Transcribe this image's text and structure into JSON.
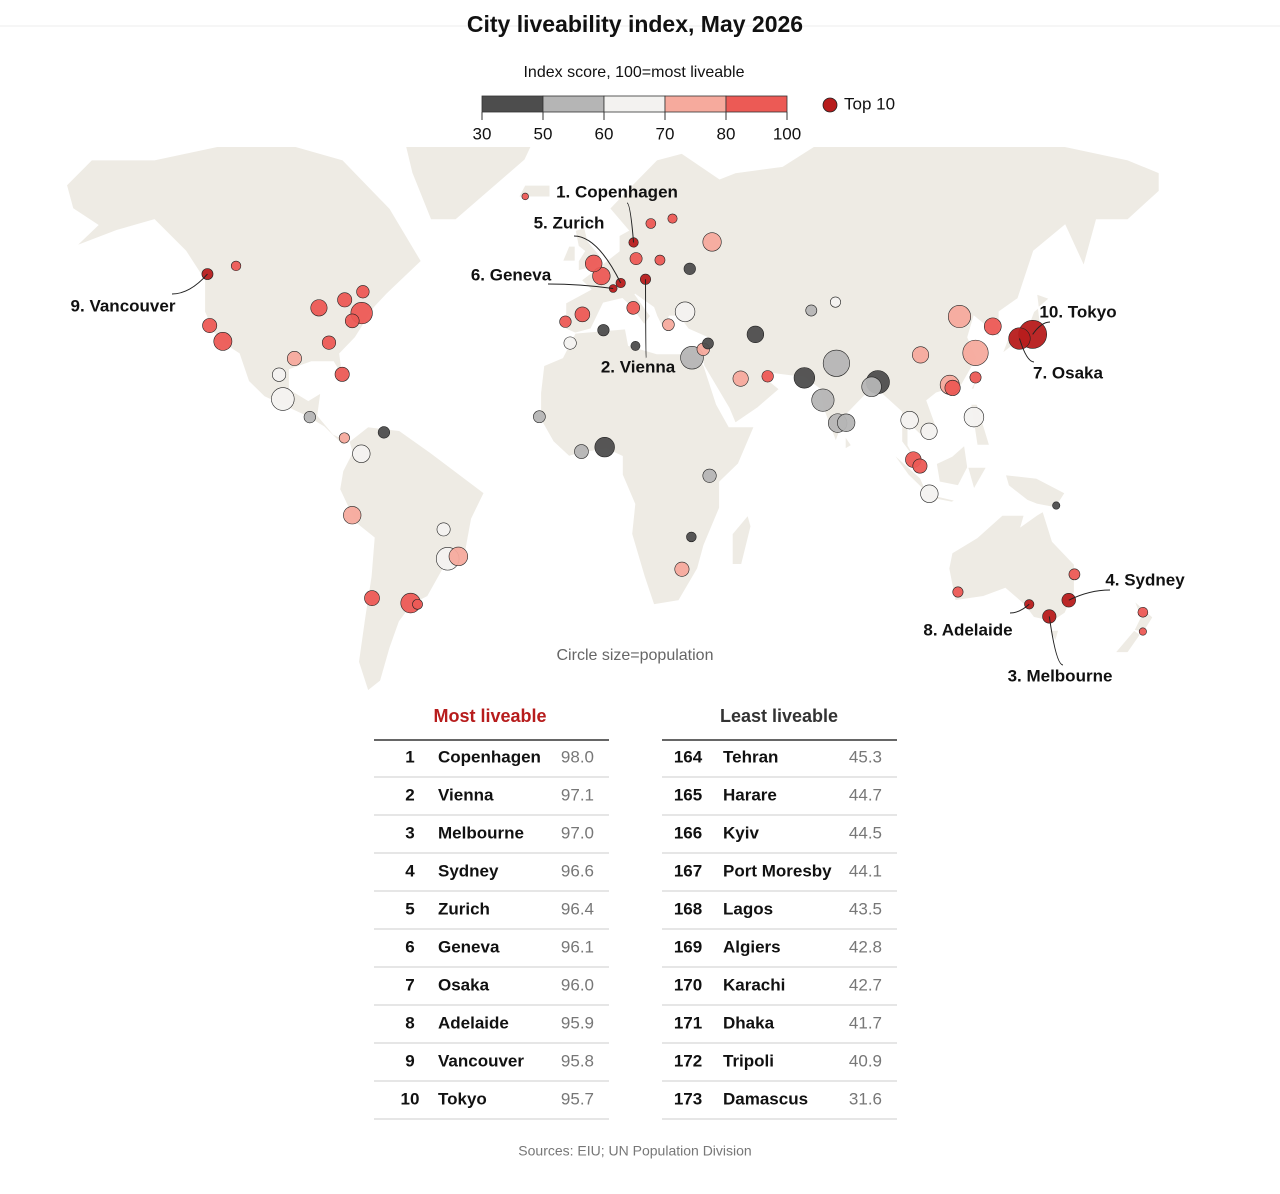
{
  "chart_data": {
    "type": "bubble-map",
    "title": "City liveability index, May 2026",
    "legend_title": "Index score, 100=most liveable",
    "scale": {
      "ticks": [
        30,
        50,
        60,
        70,
        80,
        100
      ],
      "colors": [
        "#4d4d4d",
        "#b5b5b5",
        "#f3f2f0",
        "#f6aa9d",
        "#ec5a55"
      ]
    },
    "top_label": "Top 10",
    "top_color": "#b71c1c",
    "size_note": "Circle size=population",
    "annotations": [
      "1. Copenhagen",
      "2. Vienna",
      "3. Melbourne",
      "4. Sydney",
      "5. Zurich",
      "6. Geneva",
      "7. Osaka",
      "8. Adelaide",
      "9. Vancouver",
      "10. Tokyo"
    ],
    "bubbles": [
      {
        "lon": 12.6,
        "lat": 55.7,
        "score": 98.0,
        "population": 1.4,
        "top": true
      },
      {
        "lon": 16.4,
        "lat": 48.2,
        "score": 97.1,
        "population": 2,
        "top": true
      },
      {
        "lon": 145,
        "lat": -37.8,
        "score": 97.0,
        "population": 5,
        "top": true
      },
      {
        "lon": 151.2,
        "lat": -33.9,
        "score": 96.6,
        "population": 5.3,
        "top": true
      },
      {
        "lon": 8.5,
        "lat": 47.4,
        "score": 96.4,
        "population": 1.4,
        "top": true
      },
      {
        "lon": 6.1,
        "lat": 46.2,
        "score": 96.1,
        "population": 0.6,
        "top": true
      },
      {
        "lon": 135.5,
        "lat": 34.7,
        "score": 96.0,
        "population": 19,
        "top": true
      },
      {
        "lon": 138.6,
        "lat": -34.9,
        "score": 95.9,
        "population": 1.4,
        "top": true
      },
      {
        "lon": -123.1,
        "lat": 49.3,
        "score": 95.8,
        "population": 2.6,
        "top": true
      },
      {
        "lon": 139.7,
        "lat": 35.7,
        "score": 95.7,
        "population": 37,
        "top": true
      },
      {
        "lon": 51.4,
        "lat": 35.7,
        "score": 45.3,
        "population": 9.5
      },
      {
        "lon": 31,
        "lat": -17.8,
        "score": 44.7,
        "population": 1.6
      },
      {
        "lon": 30.5,
        "lat": 50.4,
        "score": 44.5,
        "population": 3
      },
      {
        "lon": 147.2,
        "lat": -9.4,
        "score": 44.1,
        "population": 0.4
      },
      {
        "lon": 3.4,
        "lat": 6.5,
        "score": 43.5,
        "population": 15
      },
      {
        "lon": 3,
        "lat": 36.7,
        "score": 42.8,
        "population": 2.9
      },
      {
        "lon": 67,
        "lat": 24.9,
        "score": 42.7,
        "population": 17
      },
      {
        "lon": 90.4,
        "lat": 23.8,
        "score": 41.7,
        "population": 23
      },
      {
        "lon": 13.2,
        "lat": 32.9,
        "score": 40.9,
        "population": 1.2
      },
      {
        "lon": 36.3,
        "lat": 33.5,
        "score": 31.6,
        "population": 2.5
      },
      {
        "lon": -74,
        "lat": 40.7,
        "score": 88,
        "population": 19
      },
      {
        "lon": -79.4,
        "lat": 43.7,
        "score": 90,
        "population": 6
      },
      {
        "lon": -73.6,
        "lat": 45.5,
        "score": 90,
        "population": 4
      },
      {
        "lon": -87.6,
        "lat": 41.9,
        "score": 85,
        "population": 9
      },
      {
        "lon": -77,
        "lat": 38.9,
        "score": 86,
        "population": 5.5
      },
      {
        "lon": -118.2,
        "lat": 34,
        "score": 82,
        "population": 12
      },
      {
        "lon": -122.4,
        "lat": 37.8,
        "score": 85,
        "population": 6
      },
      {
        "lon": -114,
        "lat": 51,
        "score": 94,
        "population": 1.5
      },
      {
        "lon": -95.4,
        "lat": 29.8,
        "score": 78,
        "population": 6
      },
      {
        "lon": -84.4,
        "lat": 33.7,
        "score": 80,
        "population": 5
      },
      {
        "lon": -80.2,
        "lat": 25.8,
        "score": 80,
        "population": 6
      },
      {
        "lon": -99.1,
        "lat": 19.4,
        "score": 62,
        "population": 22
      },
      {
        "lon": -100.3,
        "lat": 25.7,
        "score": 68,
        "population": 5
      },
      {
        "lon": -90.5,
        "lat": 14.6,
        "score": 58,
        "population": 3
      },
      {
        "lon": -79.5,
        "lat": 9,
        "score": 72,
        "population": 2
      },
      {
        "lon": -74.1,
        "lat": 4.7,
        "score": 67,
        "population": 11
      },
      {
        "lon": -66.9,
        "lat": 10.5,
        "score": 38,
        "population": 3
      },
      {
        "lon": -77,
        "lat": -12,
        "score": 75,
        "population": 11
      },
      {
        "lon": -46.6,
        "lat": -23.5,
        "score": 68,
        "population": 22
      },
      {
        "lon": -43.2,
        "lat": -22.9,
        "score": 72,
        "population": 13
      },
      {
        "lon": -47.9,
        "lat": -15.8,
        "score": 66,
        "population": 4.7
      },
      {
        "lon": -58.4,
        "lat": -34.6,
        "score": 83,
        "population": 15
      },
      {
        "lon": -70.7,
        "lat": -33.4,
        "score": 82,
        "population": 7
      },
      {
        "lon": -56.2,
        "lat": -34.9,
        "score": 80,
        "population": 1.8
      },
      {
        "lon": -0.1,
        "lat": 51.5,
        "score": 93,
        "population": 9.6
      },
      {
        "lon": 2.35,
        "lat": 48.9,
        "score": 90,
        "population": 11
      },
      {
        "lon": -3.7,
        "lat": 40.4,
        "score": 88,
        "population": 6.7
      },
      {
        "lon": -9.1,
        "lat": 38.7,
        "score": 85,
        "population": 3
      },
      {
        "lon": 12.5,
        "lat": 41.9,
        "score": 83,
        "population": 4.3
      },
      {
        "lon": 13.4,
        "lat": 52.5,
        "score": 93,
        "population": 3.6
      },
      {
        "lon": 18.1,
        "lat": 59.3,
        "score": 95,
        "population": 1.7
      },
      {
        "lon": 25,
        "lat": 60.2,
        "score": 95,
        "population": 1.3
      },
      {
        "lon": 37.6,
        "lat": 55.8,
        "score": 75,
        "population": 12.6
      },
      {
        "lon": 29,
        "lat": 41,
        "score": 62,
        "population": 15
      },
      {
        "lon": 23.7,
        "lat": 38,
        "score": 78,
        "population": 3.2
      },
      {
        "lon": 21,
        "lat": 52.2,
        "score": 88,
        "population": 1.8
      },
      {
        "lon": -21.9,
        "lat": 64.1,
        "score": 92,
        "population": 0.2
      },
      {
        "lon": 31.2,
        "lat": 30,
        "score": 55,
        "population": 22
      },
      {
        "lon": -7.6,
        "lat": 33.6,
        "score": 60,
        "population": 3.8
      },
      {
        "lon": 34.8,
        "lat": 32.1,
        "score": 72,
        "population": 4
      },
      {
        "lon": 46.7,
        "lat": 24.7,
        "score": 72,
        "population": 7.5
      },
      {
        "lon": 55.3,
        "lat": 25.3,
        "score": 80,
        "population": 3
      },
      {
        "lon": 69.2,
        "lat": 41.3,
        "score": 55,
        "population": 2.6
      },
      {
        "lon": 76.9,
        "lat": 43.2,
        "score": 66,
        "population": 2
      },
      {
        "lon": 72.9,
        "lat": 19.1,
        "score": 55,
        "population": 21
      },
      {
        "lon": 77.2,
        "lat": 28.6,
        "score": 56,
        "population": 32
      },
      {
        "lon": 77.6,
        "lat": 13,
        "score": 58,
        "population": 13
      },
      {
        "lon": 80.3,
        "lat": 13.1,
        "score": 57,
        "population": 11
      },
      {
        "lon": 88.4,
        "lat": 22.6,
        "score": 58,
        "population": 15
      },
      {
        "lon": 116.4,
        "lat": 39.9,
        "score": 77,
        "population": 21
      },
      {
        "lon": 121.5,
        "lat": 31.2,
        "score": 78,
        "population": 29
      },
      {
        "lon": 113.3,
        "lat": 23.1,
        "score": 76,
        "population": 14
      },
      {
        "lon": 114.2,
        "lat": 22.3,
        "score": 84,
        "population": 7.5
      },
      {
        "lon": 127,
        "lat": 37.6,
        "score": 90,
        "population": 10
      },
      {
        "lon": 121.5,
        "lat": 25,
        "score": 86,
        "population": 2.7
      },
      {
        "lon": 104,
        "lat": 30.7,
        "score": 75,
        "population": 9
      },
      {
        "lon": 100.5,
        "lat": 13.8,
        "score": 68,
        "population": 11
      },
      {
        "lon": 106.7,
        "lat": 10.8,
        "score": 66,
        "population": 9
      },
      {
        "lon": 101.7,
        "lat": 3.1,
        "score": 82,
        "population": 8
      },
      {
        "lon": 103.8,
        "lat": 1.35,
        "score": 86,
        "population": 6
      },
      {
        "lon": 106.8,
        "lat": -6.2,
        "score": 62,
        "population": 11
      },
      {
        "lon": 121,
        "lat": 14.6,
        "score": 64,
        "population": 15
      },
      {
        "lon": 36.8,
        "lat": -1.3,
        "score": 54,
        "population": 5
      },
      {
        "lon": -17.4,
        "lat": 14.7,
        "score": 58,
        "population": 3.4
      },
      {
        "lon": -4,
        "lat": 5.3,
        "score": 55,
        "population": 5.6
      },
      {
        "lon": 28,
        "lat": -26.2,
        "score": 75,
        "population": 6
      },
      {
        "lon": 174.8,
        "lat": -41.3,
        "score": 92,
        "population": 0.4
      },
      {
        "lon": 174.8,
        "lat": -36.8,
        "score": 93,
        "population": 1.7
      },
      {
        "lon": 115.9,
        "lat": -31.9,
        "score": 94,
        "population": 2
      },
      {
        "lon": 153,
        "lat": -27.5,
        "score": 94,
        "population": 2.5
      }
    ],
    "tables": [
      {
        "title": "Most liveable",
        "rows": [
          [
            "1",
            "Copenhagen",
            "98.0"
          ],
          [
            "2",
            "Vienna",
            "97.1"
          ],
          [
            "3",
            "Melbourne",
            "97.0"
          ],
          [
            "4",
            "Sydney",
            "96.6"
          ],
          [
            "5",
            "Zurich",
            "96.4"
          ],
          [
            "6",
            "Geneva",
            "96.1"
          ],
          [
            "7",
            "Osaka",
            "96.0"
          ],
          [
            "8",
            "Adelaide",
            "95.9"
          ],
          [
            "9",
            "Vancouver",
            "95.8"
          ],
          [
            "10",
            "Tokyo",
            "95.7"
          ]
        ]
      },
      {
        "title": "Least liveable",
        "rows": [
          [
            "164",
            "Tehran",
            "45.3"
          ],
          [
            "165",
            "Harare",
            "44.7"
          ],
          [
            "166",
            "Kyiv",
            "44.5"
          ],
          [
            "167",
            "Port Moresby",
            "44.1"
          ],
          [
            "168",
            "Lagos",
            "43.5"
          ],
          [
            "169",
            "Algiers",
            "42.8"
          ],
          [
            "170",
            "Karachi",
            "42.7"
          ],
          [
            "171",
            "Dhaka",
            "41.7"
          ],
          [
            "172",
            "Tripoli",
            "40.9"
          ],
          [
            "173",
            "Damascus",
            "31.6"
          ]
        ]
      }
    ],
    "source": "Sources: EIU; UN Population Division"
  }
}
